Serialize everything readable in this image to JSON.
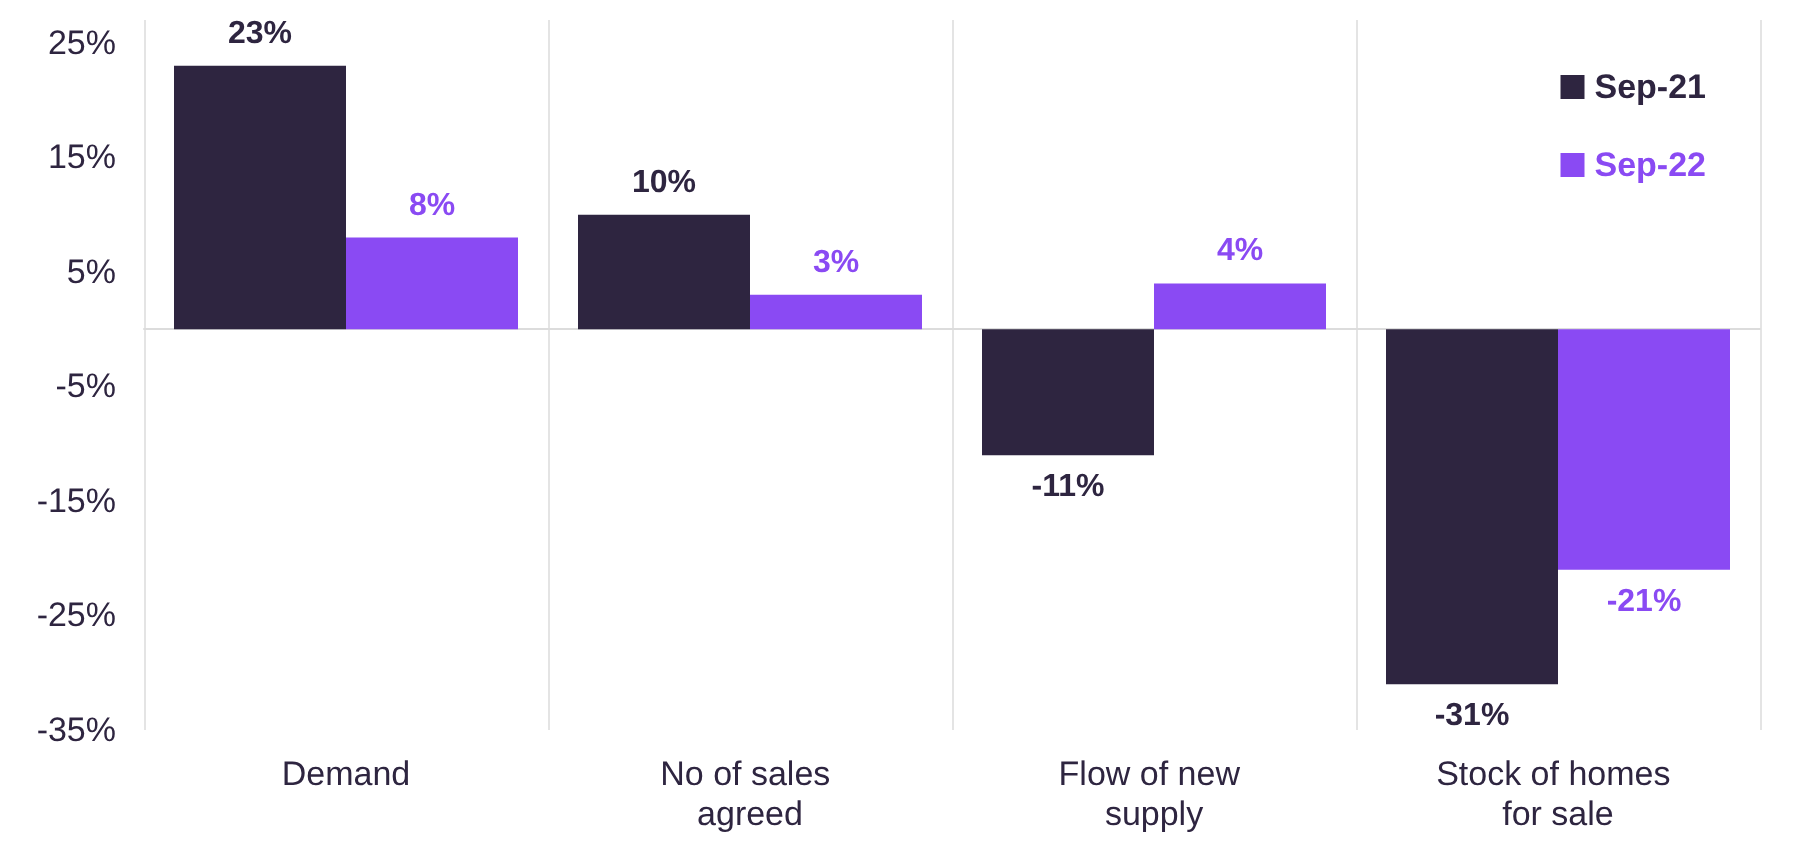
{
  "chart_data": {
    "type": "bar",
    "categories": [
      "Demand",
      "No of sales agreed",
      "Flow of new supply",
      "Stock of homes for sale"
    ],
    "series": [
      {
        "name": "Sep-21",
        "color": "#2e2540",
        "values": [
          23,
          10,
          -11,
          -31
        ],
        "value_labels": [
          "23%",
          "10%",
          "-11%",
          "-31%"
        ]
      },
      {
        "name": "Sep-22",
        "color": "#8a4af3",
        "values": [
          8,
          3,
          4,
          -21
        ],
        "value_labels": [
          "8%",
          "3%",
          "4%",
          "-21%"
        ]
      }
    ],
    "ylim": [
      -35,
      27
    ],
    "yticks": [
      {
        "value": 25,
        "label": "25%"
      },
      {
        "value": 15,
        "label": "15%"
      },
      {
        "value": 5,
        "label": "5%"
      },
      {
        "value": -5,
        "label": "-5%"
      },
      {
        "value": -15,
        "label": "-15%"
      },
      {
        "value": -25,
        "label": "-25%"
      },
      {
        "value": -35,
        "label": "-35%"
      }
    ],
    "grid": "x",
    "legend": "top right"
  }
}
